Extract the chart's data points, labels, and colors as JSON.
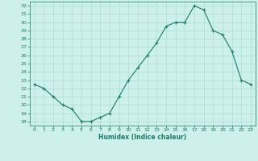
{
  "x": [
    0,
    1,
    2,
    3,
    4,
    5,
    6,
    7,
    8,
    9,
    10,
    11,
    12,
    13,
    14,
    15,
    16,
    17,
    18,
    19,
    20,
    21,
    22,
    23
  ],
  "y": [
    22.5,
    22.0,
    21.0,
    20.0,
    19.5,
    18.0,
    18.0,
    18.5,
    19.0,
    21.0,
    23.0,
    24.5,
    26.0,
    27.5,
    29.5,
    30.0,
    30.0,
    32.0,
    31.5,
    29.0,
    28.5,
    26.5,
    23.0,
    22.5
  ],
  "xlabel": "Humidex (Indice chaleur)",
  "ylim": [
    17.5,
    32.5
  ],
  "xlim": [
    -0.5,
    23.5
  ],
  "yticks": [
    18,
    19,
    20,
    21,
    22,
    23,
    24,
    25,
    26,
    27,
    28,
    29,
    30,
    31,
    32
  ],
  "xticks": [
    0,
    1,
    2,
    3,
    4,
    5,
    6,
    7,
    8,
    9,
    10,
    11,
    12,
    13,
    14,
    15,
    16,
    17,
    18,
    19,
    20,
    21,
    22,
    23
  ],
  "line_color": "#1a7a6e",
  "marker": "+",
  "bg_color": "#cef0ea",
  "grid_color": "#aaddd6",
  "xlabel_color": "#1a7a6e",
  "tick_color": "#1a7a6e",
  "spine_color": "#1a7a6e"
}
